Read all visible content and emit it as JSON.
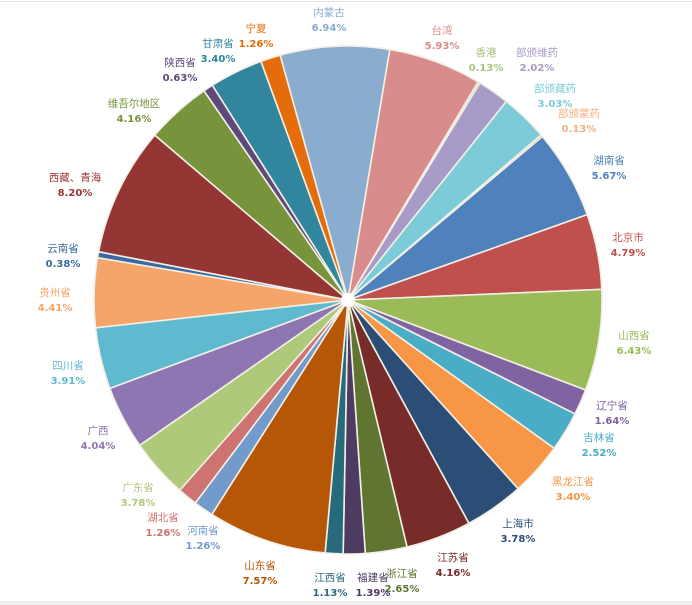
{
  "chart_data": {
    "type": "pie",
    "categories": [
      "内蒙古",
      "台湾",
      "香港",
      "部颁维药",
      "部颁藏药",
      "部颁蒙药",
      "湖南省",
      "北京市",
      "山西省",
      "辽宁省",
      "吉林省",
      "黑龙江省",
      "上海市",
      "江苏省",
      "浙江省",
      "福建省",
      "江西省",
      "山东省",
      "河南省",
      "湖北省",
      "广东省",
      "广西",
      "四川省",
      "贵州省",
      "云南省",
      "西藏、青海",
      "维吾尔地区",
      "陕西省",
      "甘肃省",
      "宁夏"
    ],
    "values": [
      6.94,
      5.93,
      0.13,
      2.02,
      3.03,
      0.13,
      5.67,
      4.79,
      6.43,
      1.64,
      2.52,
      3.4,
      3.78,
      4.16,
      2.65,
      1.39,
      1.13,
      7.57,
      1.26,
      1.26,
      3.78,
      4.04,
      3.91,
      4.41,
      0.38,
      8.2,
      4.16,
      0.63,
      3.4,
      1.26
    ],
    "value_labels": [
      "6.94%",
      "5.93%",
      "0.13%",
      "2.02%",
      "3.03%",
      "0.13%",
      "5.67%",
      "4.79%",
      "6.43%",
      "1.64%",
      "2.52%",
      "3.40%",
      "3.78%",
      "4.16%",
      "2.65%",
      "1.39%",
      "1.13%",
      "7.57%",
      "1.26%",
      "1.26%",
      "3.78%",
      "4.04%",
      "3.91%",
      "4.41%",
      "0.38%",
      "8.20%",
      "4.16%",
      "0.63%",
      "3.40%",
      "1.26%"
    ],
    "colors": [
      "#8aaccf",
      "#d98c8c",
      "#a9c47f",
      "#a99bc7",
      "#7ccbd8",
      "#f4b183",
      "#4f81bd",
      "#c0504d",
      "#9bbb59",
      "#8064a2",
      "#4bacc6",
      "#f79646",
      "#2c4d75",
      "#772c2a",
      "#5f7530",
      "#4d3b62",
      "#276a7c",
      "#b65708",
      "#729aca",
      "#cd7371",
      "#afc97a",
      "#8d76b1",
      "#5fbad0",
      "#f5a46a",
      "#3a6aa0",
      "#943634",
      "#77933c",
      "#5f497a",
      "#31859c",
      "#e46c0a"
    ],
    "direction": "clockwise",
    "legend": "none",
    "data_labels": "category and percent"
  }
}
